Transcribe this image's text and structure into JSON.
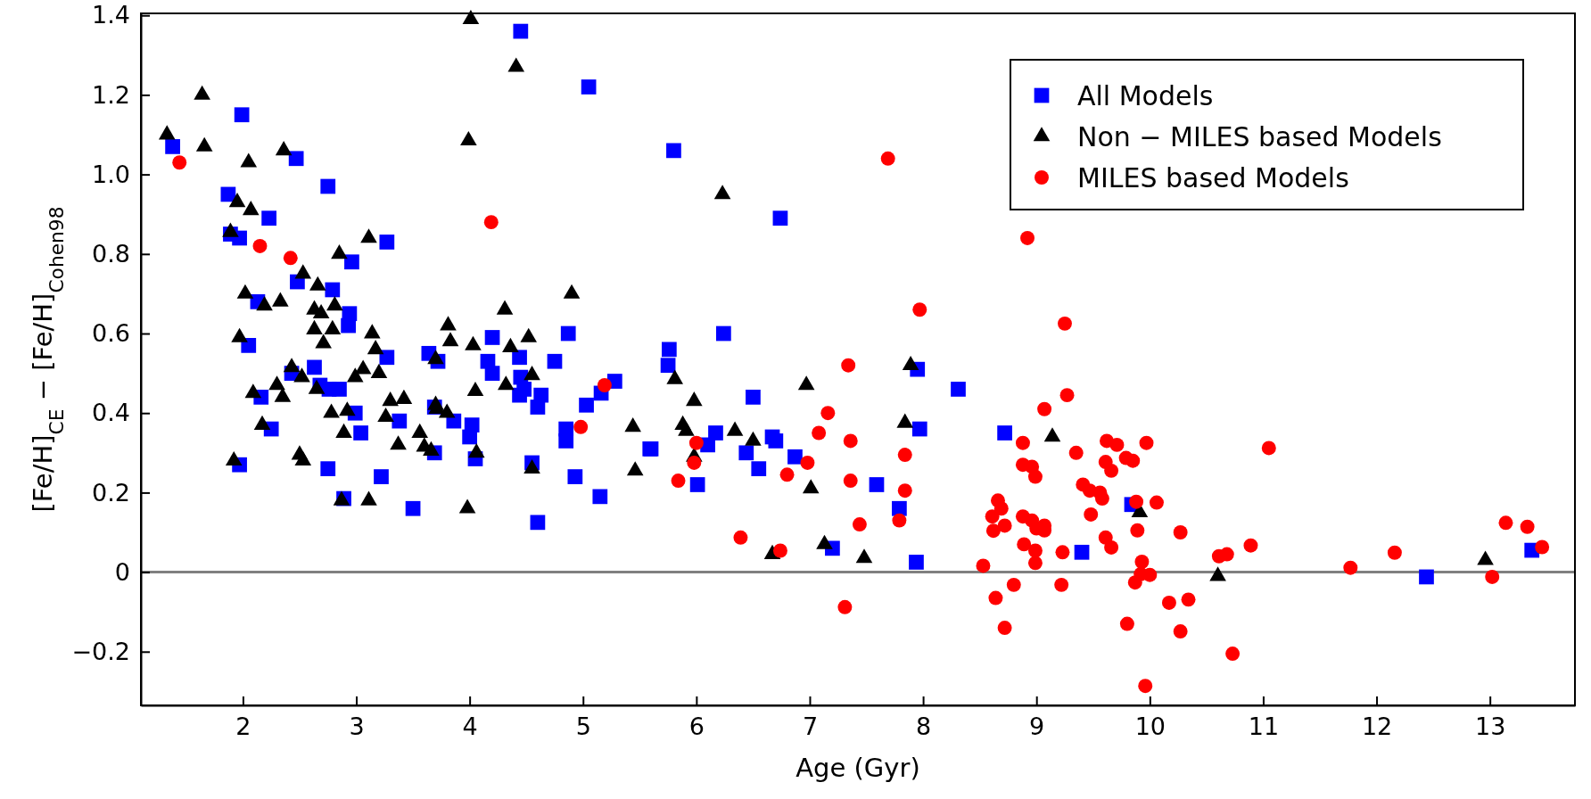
{
  "chart_data": {
    "type": "scatter",
    "xlabel": "Age (Gyr)",
    "ylabel": "[Fe/H]$_{CE}$ − [Fe/H]$_{Cohen98}$",
    "xlim": [
      1.1,
      13.75
    ],
    "ylim": [
      -0.335,
      1.405
    ],
    "xticks": [
      2,
      3,
      4,
      5,
      6,
      7,
      8,
      9,
      10,
      11,
      12,
      13
    ],
    "yticks": [
      {
        "value": -0.2,
        "label": "−0.2"
      },
      0,
      0.2,
      0.4,
      0.6,
      0.8,
      {
        "value": 1,
        "label": "1.0"
      },
      1.2,
      1.4
    ],
    "grid": false,
    "legend": "top right",
    "ref_lines": [
      {
        "axis": "y",
        "value": 0,
        "color": "#808080"
      }
    ],
    "series": [
      {
        "name": "All Models",
        "color": "#0000ff",
        "marker": "square",
        "x": [
          4.45,
          5.05,
          1.99,
          1.38,
          2.47,
          2.75,
          1.87,
          2.23,
          1.89,
          1.97,
          3.27,
          2.96,
          2.48,
          2.79,
          2.13,
          2.94,
          2.93,
          2.05,
          4.2,
          4.87,
          3.27,
          3.64,
          3.72,
          4.16,
          4.44,
          4.75,
          4.2,
          4.45,
          2.63,
          2.43,
          2.68,
          2.76,
          2.85,
          4.48,
          4.44,
          4.63,
          4.6,
          5.28,
          5.16,
          5.03,
          4.85,
          4.85,
          5.59,
          2.16,
          2.25,
          1.97,
          2.99,
          3.04,
          2.75,
          2.89,
          3.22,
          3.38,
          3.5,
          3.69,
          3.69,
          3.86,
          4.02,
          4.0,
          4.05,
          4.55,
          4.6,
          4.93,
          5.15,
          5.8,
          6.74,
          6.24,
          5.76,
          5.75,
          7.95,
          8.31,
          6.5,
          5.6,
          6.17,
          6.1,
          6.01,
          6.67,
          6.7,
          6.44,
          6.55,
          6.87,
          7.97,
          8.72,
          7.59,
          7.79,
          7.2,
          7.94,
          9.4,
          9.84,
          12.44,
          13.37
        ],
        "values": [
          1.36,
          1.22,
          1.15,
          1.07,
          1.04,
          0.97,
          0.95,
          0.89,
          0.85,
          0.84,
          0.83,
          0.78,
          0.73,
          0.71,
          0.68,
          0.65,
          0.62,
          0.57,
          0.59,
          0.6,
          0.54,
          0.55,
          0.53,
          0.53,
          0.54,
          0.53,
          0.5,
          0.49,
          0.515,
          0.5,
          0.47,
          0.46,
          0.46,
          0.46,
          0.445,
          0.445,
          0.415,
          0.48,
          0.45,
          0.42,
          0.36,
          0.33,
          0.31,
          0.44,
          0.36,
          0.27,
          0.4,
          0.35,
          0.26,
          0.185,
          0.24,
          0.38,
          0.16,
          0.415,
          0.3,
          0.38,
          0.37,
          0.34,
          0.285,
          0.275,
          0.125,
          0.24,
          0.19,
          1.06,
          0.89,
          0.6,
          0.56,
          0.52,
          0.51,
          0.46,
          0.44,
          0.31,
          0.35,
          0.32,
          0.22,
          0.34,
          0.33,
          0.3,
          0.26,
          0.29,
          0.36,
          0.35,
          0.22,
          0.16,
          0.06,
          0.025,
          0.05,
          0.17,
          -0.012,
          0.055
        ]
      },
      {
        "name": "Non − MILES based Models",
        "color": "#000000",
        "marker": "triangle",
        "x": [
          4.01,
          4.41,
          1.64,
          1.33,
          1.66,
          3.99,
          2.36,
          2.05,
          1.95,
          2.07,
          1.89,
          3.11,
          2.85,
          2.53,
          2.66,
          2.02,
          2.19,
          2.33,
          4.9,
          4.31,
          2.63,
          2.69,
          2.81,
          2.63,
          2.79,
          3.14,
          3.81,
          1.97,
          2.71,
          3.17,
          3.83,
          4.03,
          4.36,
          4.52,
          3.7,
          4.55,
          2.43,
          3.06,
          3.2,
          2.52,
          2.3,
          2.99,
          2.65,
          2.09,
          2.35,
          4.05,
          4.32,
          3.3,
          3.42,
          3.7,
          3.71,
          3.8,
          2.78,
          2.92,
          3.26,
          2.17,
          2.89,
          3.56,
          3.37,
          3.6,
          3.66,
          4.06,
          2.5,
          2.53,
          1.92,
          4.55,
          2.87,
          3.11,
          3.98,
          5.44,
          5.46,
          6.23,
          5.81,
          7.89,
          6.97,
          5.98,
          5.88,
          5.91,
          6.34,
          6.5,
          5.98,
          7.01,
          7.84,
          9.14,
          6.67,
          7.13,
          7.48,
          9.91,
          10.6,
          12.96
        ],
        "values": [
          1.39,
          1.27,
          1.2,
          1.1,
          1.07,
          1.085,
          1.06,
          1.03,
          0.93,
          0.91,
          0.855,
          0.84,
          0.8,
          0.75,
          0.72,
          0.7,
          0.67,
          0.68,
          0.7,
          0.66,
          0.66,
          0.65,
          0.67,
          0.61,
          0.61,
          0.6,
          0.62,
          0.59,
          0.575,
          0.56,
          0.58,
          0.57,
          0.565,
          0.59,
          0.535,
          0.495,
          0.515,
          0.51,
          0.5,
          0.49,
          0.47,
          0.49,
          0.46,
          0.45,
          0.44,
          0.455,
          0.47,
          0.43,
          0.435,
          0.42,
          0.41,
          0.4,
          0.4,
          0.405,
          0.39,
          0.37,
          0.35,
          0.35,
          0.32,
          0.315,
          0.305,
          0.3,
          0.295,
          0.28,
          0.28,
          0.26,
          0.18,
          0.18,
          0.16,
          0.365,
          0.255,
          0.95,
          0.485,
          0.52,
          0.47,
          0.43,
          0.37,
          0.355,
          0.355,
          0.33,
          0.29,
          0.21,
          0.375,
          0.34,
          0.045,
          0.07,
          0.035,
          0.15,
          -0.01,
          0.03
        ]
      },
      {
        "name": "MILES based Models",
        "color": "#ff0000",
        "marker": "circle",
        "x": [
          1.44,
          2.15,
          2.42,
          4.19,
          5.19,
          4.98,
          7.69,
          8.92,
          9.25,
          7.97,
          7.34,
          9.27,
          9.07,
          7.16,
          7.08,
          7.36,
          6.0,
          5.98,
          5.84,
          6.8,
          6.98,
          7.36,
          7.84,
          7.84,
          7.79,
          7.44,
          6.39,
          6.74,
          7.31,
          8.88,
          9.35,
          9.62,
          9.71,
          9.97,
          8.88,
          8.96,
          8.99,
          9.61,
          9.66,
          9.79,
          9.85,
          9.41,
          9.47,
          9.56,
          9.58,
          9.88,
          10.06,
          8.66,
          8.69,
          8.61,
          8.72,
          8.62,
          8.88,
          8.96,
          9.0,
          9.07,
          9.07,
          9.48,
          9.89,
          9.61,
          9.66,
          8.89,
          8.99,
          8.99,
          9.23,
          8.53,
          9.93,
          8.8,
          9.22,
          8.64,
          8.72,
          9.8,
          9.96,
          9.87,
          10.0,
          9.92,
          11.05,
          10.27,
          10.89,
          10.61,
          10.68,
          11.77,
          12.16,
          13.14,
          13.33,
          13.46,
          13.02,
          10.17,
          10.34,
          10.27,
          10.73
        ],
        "values": [
          1.03,
          0.82,
          0.79,
          0.88,
          0.47,
          0.365,
          1.04,
          0.84,
          0.625,
          0.66,
          0.52,
          0.445,
          0.41,
          0.4,
          0.35,
          0.33,
          0.325,
          0.275,
          0.23,
          0.245,
          0.275,
          0.23,
          0.295,
          0.205,
          0.13,
          0.12,
          0.087,
          0.054,
          -0.088,
          0.325,
          0.3,
          0.33,
          0.32,
          0.325,
          0.27,
          0.265,
          0.24,
          0.277,
          0.255,
          0.287,
          0.28,
          0.22,
          0.205,
          0.2,
          0.185,
          0.177,
          0.175,
          0.18,
          0.16,
          0.14,
          0.117,
          0.104,
          0.14,
          0.13,
          0.11,
          0.117,
          0.105,
          0.145,
          0.105,
          0.087,
          0.062,
          0.07,
          0.054,
          0.023,
          0.05,
          0.016,
          0.026,
          -0.032,
          -0.032,
          -0.065,
          -0.14,
          -0.13,
          -0.286,
          -0.026,
          -0.007,
          -0.005,
          0.312,
          0.1,
          0.067,
          0.04,
          0.045,
          0.011,
          0.049,
          0.124,
          0.114,
          0.063,
          -0.012,
          -0.077,
          -0.069,
          -0.149,
          -0.205
        ]
      }
    ]
  }
}
